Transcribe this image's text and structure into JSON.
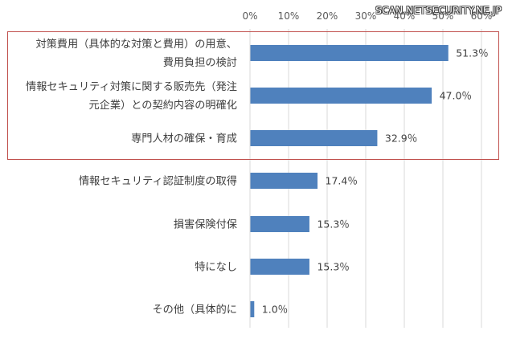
{
  "watermark": "SCAN.NETSECURITY.NE.JP",
  "chart_data": {
    "type": "bar",
    "orientation": "horizontal",
    "xlim": [
      0,
      60
    ],
    "x_ticks": [
      "0%",
      "10%",
      "20%",
      "30%",
      "40%",
      "50%",
      "60%"
    ],
    "grid": true,
    "bar_color": "#4f81bd",
    "highlight_color": "#c0504d",
    "categories": [
      [
        "対策費用（具体的な対策と費用）の用意、",
        "費用負担の検討"
      ],
      [
        "情報セキュリティ対策に関する販売先（発注",
        "元企業）との契約内容の明確化"
      ],
      [
        "専門人材の確保・育成"
      ],
      [
        "情報セキュリティ認証制度の取得"
      ],
      [
        "損害保険付保"
      ],
      [
        "特になし"
      ],
      [
        "その他（具体的に"
      ]
    ],
    "values": [
      51.3,
      47.0,
      32.9,
      17.4,
      15.3,
      15.3,
      1.0
    ],
    "value_labels": [
      "51.3％",
      "47.0％",
      "32.9％",
      "17.4％",
      "15.3％",
      "15.3％",
      "1.0％"
    ],
    "highlighted_categories": [
      0,
      1,
      2
    ]
  }
}
